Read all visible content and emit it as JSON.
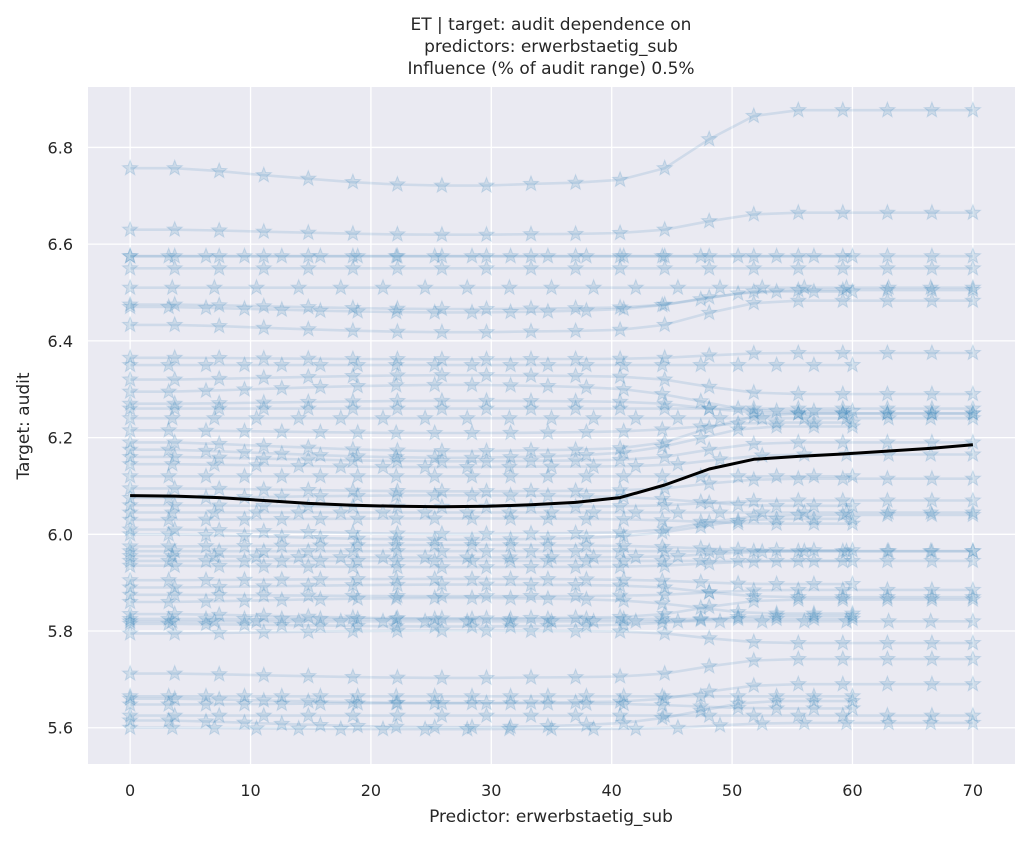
{
  "chart_data": {
    "type": "line",
    "title_lines": [
      "ET | target: audit dependence on",
      "predictors: erwerbstaetig_sub",
      "Influence (% of audit range) 0.5%"
    ],
    "xlabel": "Predictor: erwerbstaetig_sub",
    "ylabel": "Target: audit",
    "xlim": [
      -3.5,
      73.5
    ],
    "ylim": [
      5.525,
      6.925
    ],
    "xticks": [
      0,
      10,
      20,
      30,
      40,
      50,
      60,
      70
    ],
    "yticks": [
      5.6,
      5.8,
      6.0,
      6.2,
      6.4,
      6.6,
      6.8
    ],
    "xtick_labels": [
      "0",
      "10",
      "20",
      "30",
      "40",
      "50",
      "60",
      "70"
    ],
    "ytick_labels": [
      "5.6",
      "5.8",
      "6.0",
      "6.2",
      "6.4",
      "6.6",
      "6.8"
    ],
    "grid": true,
    "colors": {
      "plot_background": "#eaeaf2",
      "grid": "#ffffff",
      "ice_lines": "#1f77b4",
      "mean_line": "#000000"
    },
    "ice_curves": {
      "marker": "star",
      "count": 50,
      "x_full": [
        0,
        3.7,
        7.4,
        11.1,
        14.8,
        18.5,
        22.2,
        25.9,
        29.6,
        33.3,
        37.0,
        40.7,
        44.4,
        48.1,
        51.8,
        55.5,
        59.2,
        62.9,
        66.6,
        70.0
      ],
      "x_short": [
        0,
        3.2,
        6.3,
        9.5,
        12.6,
        15.8,
        18.9,
        22.1,
        25.3,
        28.4,
        31.6,
        34.7,
        37.9,
        41.0,
        44.2,
        47.4,
        50.5,
        53.7,
        56.8,
        60.0
      ],
      "x_mid": [
        0,
        3.5,
        7.0,
        10.5,
        14.0,
        17.5,
        21.0,
        24.5,
        28.0,
        31.5,
        35.0,
        38.5,
        42.0,
        45.5,
        49.0,
        52.5,
        56.0,
        59.5,
        63.0,
        66.5,
        70.0
      ],
      "profile_full": [
        0,
        0.0,
        -0.005,
        -0.012,
        -0.018,
        -0.024,
        -0.028,
        -0.03,
        -0.03,
        -0.027,
        -0.025,
        -0.02,
        0.0,
        0.05,
        0.09,
        0.1,
        0.1,
        0.1,
        0.1,
        0.1
      ],
      "profile_short": [
        0,
        0.0,
        -0.004,
        -0.009,
        -0.014,
        -0.019,
        -0.023,
        -0.026,
        -0.028,
        -0.028,
        -0.026,
        -0.023,
        -0.018,
        -0.01,
        0.01,
        0.04,
        0.07,
        0.08,
        0.08,
        0.08
      ],
      "curves": [
        {
          "grid": "full",
          "start": 6.757,
          "amp": 1.2
        },
        {
          "grid": "full",
          "start": 6.63,
          "amp": 0.35
        },
        {
          "grid": "short",
          "start": 6.575,
          "amp": 0.0
        },
        {
          "grid": "full",
          "start": 6.575,
          "amp": 0.0
        },
        {
          "grid": "full",
          "start": 6.55,
          "amp": 0.0
        },
        {
          "grid": "mid",
          "start": 6.51,
          "amp": 0.0
        },
        {
          "grid": "full",
          "start": 6.475,
          "amp": 0.3
        },
        {
          "grid": "short",
          "start": 6.47,
          "amp": 0.4
        },
        {
          "grid": "full",
          "start": 6.433,
          "amp": 0.5
        },
        {
          "grid": "full",
          "start": 6.365,
          "amp": 0.1
        },
        {
          "grid": "short",
          "start": 6.35,
          "amp": 0.0
        },
        {
          "grid": "full",
          "start": 6.32,
          "amp": -0.3
        },
        {
          "grid": "short",
          "start": 6.295,
          "amp": -0.5
        },
        {
          "grid": "full",
          "start": 6.27,
          "amp": -0.2
        },
        {
          "grid": "mid",
          "start": 6.24,
          "amp": 0.0
        },
        {
          "grid": "short",
          "start": 6.215,
          "amp": 0.2
        },
        {
          "grid": "full",
          "start": 6.19,
          "amp": 0.6
        },
        {
          "grid": "short",
          "start": 6.175,
          "amp": 0.6
        },
        {
          "grid": "full",
          "start": 6.16,
          "amp": 0.3
        },
        {
          "grid": "mid",
          "start": 6.145,
          "amp": 0.2
        },
        {
          "grid": "short",
          "start": 6.12,
          "amp": 0.0
        },
        {
          "grid": "full",
          "start": 6.095,
          "amp": 0.2
        },
        {
          "grid": "short",
          "start": 6.075,
          "amp": -0.2
        },
        {
          "grid": "full",
          "start": 6.06,
          "amp": 0.1
        },
        {
          "grid": "mid",
          "start": 6.045,
          "amp": 0.0
        },
        {
          "grid": "short",
          "start": 6.03,
          "amp": -0.1
        },
        {
          "grid": "full",
          "start": 6.01,
          "amp": 0.3
        },
        {
          "grid": "short",
          "start": 5.975,
          "amp": -0.1
        },
        {
          "grid": "full",
          "start": 5.965,
          "amp": 0.0
        },
        {
          "grid": "mid",
          "start": 5.955,
          "amp": 0.1
        },
        {
          "grid": "short",
          "start": 5.945,
          "amp": 0.0
        },
        {
          "grid": "full",
          "start": 5.935,
          "amp": 0.1
        },
        {
          "grid": "short",
          "start": 5.905,
          "amp": -0.1
        },
        {
          "grid": "full",
          "start": 5.89,
          "amp": -0.2
        },
        {
          "grid": "full",
          "start": 5.875,
          "amp": 0.1
        },
        {
          "grid": "short",
          "start": 5.86,
          "amp": -0.3
        },
        {
          "grid": "full",
          "start": 5.835,
          "amp": 0.3
        },
        {
          "grid": "short",
          "start": 5.825,
          "amp": 0.0
        },
        {
          "grid": "mid",
          "start": 5.82,
          "amp": 0.0
        },
        {
          "grid": "short",
          "start": 5.815,
          "amp": 0.2
        },
        {
          "grid": "full",
          "start": 5.795,
          "amp": -0.2
        },
        {
          "grid": "full",
          "start": 5.712,
          "amp": 0.3
        },
        {
          "grid": "short",
          "start": 5.665,
          "amp": 0.0
        },
        {
          "grid": "full",
          "start": 5.66,
          "amp": 0.3
        },
        {
          "grid": "short",
          "start": 5.648,
          "amp": -0.1
        },
        {
          "grid": "full",
          "start": 5.625,
          "amp": 0.0
        },
        {
          "grid": "short",
          "start": 5.615,
          "amp": 0.5
        },
        {
          "grid": "mid",
          "start": 5.6,
          "amp": 0.1
        },
        {
          "grid": "full",
          "start": 6.26,
          "amp": 0.0
        },
        {
          "grid": "short",
          "start": 6.0,
          "amp": 0.4
        }
      ]
    },
    "series": [
      {
        "role": "mean",
        "x": [
          0,
          3.7,
          7.4,
          11.1,
          14.8,
          18.5,
          22.2,
          25.9,
          29.6,
          33.3,
          37.0,
          40.7,
          44.4,
          48.1,
          51.8,
          55.5,
          59.2,
          62.9,
          66.6,
          70.0
        ],
        "y": [
          6.08,
          6.079,
          6.076,
          6.07,
          6.064,
          6.06,
          6.058,
          6.057,
          6.058,
          6.061,
          6.066,
          6.076,
          6.102,
          6.135,
          6.155,
          6.161,
          6.166,
          6.172,
          6.178,
          6.185
        ]
      }
    ]
  }
}
